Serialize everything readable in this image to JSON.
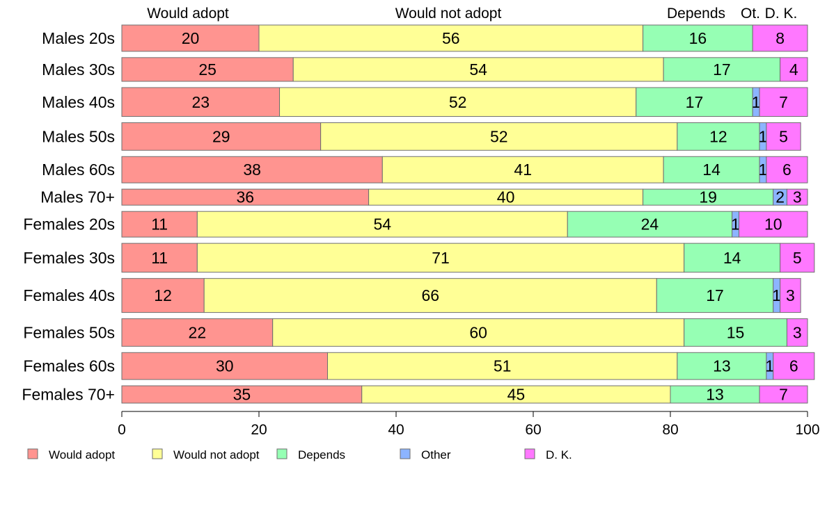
{
  "chart_data": {
    "type": "bar",
    "orientation": "horizontal",
    "stacked": true,
    "normalized_percent": true,
    "categories": [
      "Males 20s",
      "Males 30s",
      "Males 40s",
      "Males 50s",
      "Males 60s",
      "Males 70+",
      "Females 20s",
      "Females 30s",
      "Females 40s",
      "Females 50s",
      "Females 60s",
      "Females 70+"
    ],
    "category_widths": [
      41,
      37,
      45,
      43,
      41,
      25,
      40,
      45,
      53,
      43,
      42,
      27
    ],
    "series": [
      {
        "name": "Would adopt",
        "color": "#ff9490",
        "values": [
          20,
          25,
          23,
          29,
          38,
          36,
          11,
          11,
          12,
          22,
          30,
          35
        ],
        "labels": [
          "20",
          "25",
          "23",
          "29",
          "38",
          "36",
          "11",
          "11",
          "12",
          "22",
          "30",
          "35"
        ]
      },
      {
        "name": "Would not adopt",
        "color": "#ffff96",
        "values": [
          56,
          54,
          52,
          52,
          41,
          40,
          54,
          71,
          66,
          60,
          51,
          45
        ],
        "labels": [
          "56",
          "54",
          "52",
          "52",
          "41",
          "40",
          "54",
          "71",
          "66",
          "60",
          "51",
          "45"
        ]
      },
      {
        "name": "Depends",
        "color": "#96ffb4",
        "values": [
          16,
          17,
          17,
          12,
          14,
          19,
          24,
          14,
          17,
          15,
          13,
          13
        ],
        "labels": [
          "16",
          "17",
          "17",
          "12",
          "14",
          "19",
          "24",
          "14",
          "17",
          "15",
          "13",
          "13"
        ]
      },
      {
        "name": "Other",
        "color": "#8cb4ff",
        "values": [
          0,
          0,
          1,
          1,
          1,
          2,
          1,
          0,
          1,
          0,
          1,
          0
        ],
        "labels": [
          "",
          "",
          "1",
          "1",
          "1",
          "2",
          "1",
          "",
          "1",
          "",
          "1",
          ""
        ]
      },
      {
        "name": "D. K.",
        "color": "#ff78ff",
        "values": [
          8,
          4,
          7,
          5,
          6,
          3,
          10,
          5,
          3,
          3,
          6,
          7
        ],
        "labels": [
          "8",
          "4",
          "7",
          "5",
          "6",
          "3",
          "10",
          "5",
          "3",
          "3",
          "6",
          "7"
        ]
      }
    ],
    "top_labels": [
      "Would adopt",
      "Would not adopt",
      "Depends",
      "Ot.",
      "D. K."
    ],
    "x_ticks": [
      "0",
      "20",
      "40",
      "60",
      "80",
      "100"
    ],
    "xlim": [
      0,
      100
    ],
    "legend": {
      "placement": "bottom",
      "items": [
        "Would adopt",
        "Would not adopt",
        "Depends",
        "Other",
        "D. K."
      ]
    },
    "grid": false
  }
}
